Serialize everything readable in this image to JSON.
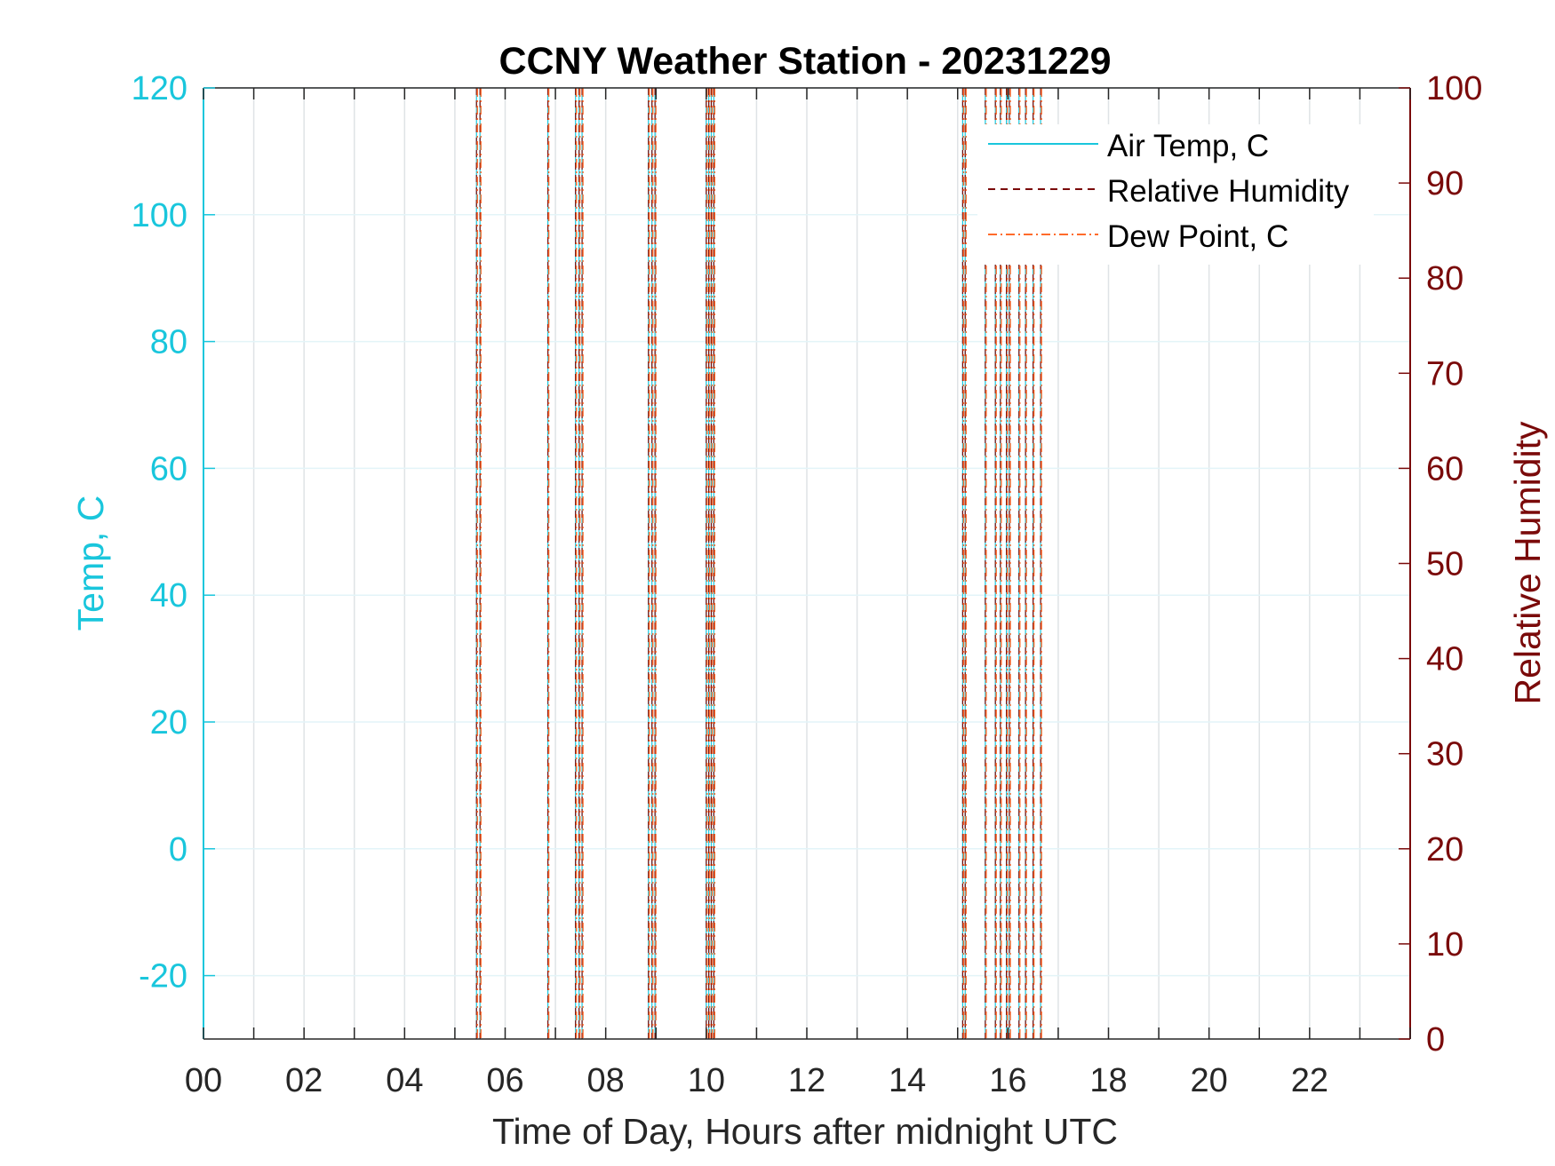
{
  "chart_data": {
    "type": "line",
    "title": "CCNY Weather Station - 20231229",
    "xlabel": "Time of Day, Hours after midnight UTC",
    "ylabel_left": "Temp, C",
    "ylabel_right": "Relative Humidity",
    "xlim": [
      0,
      24
    ],
    "ylim_left": [
      -30,
      120
    ],
    "ylim_right": [
      0,
      100
    ],
    "x_ticks": [
      "00",
      "02",
      "04",
      "06",
      "08",
      "10",
      "12",
      "14",
      "16",
      "18",
      "20",
      "22"
    ],
    "x_tick_values": [
      0,
      2,
      4,
      6,
      8,
      10,
      12,
      14,
      16,
      18,
      20,
      22
    ],
    "y_left_ticks": [
      -20,
      0,
      20,
      40,
      60,
      80,
      100,
      120
    ],
    "y_right_ticks": [
      0,
      10,
      20,
      30,
      40,
      50,
      60,
      70,
      80,
      90,
      100
    ],
    "grid": true,
    "legend_position": "top-right",
    "series": [
      {
        "name": "Air Temp, C",
        "axis": "left",
        "style": "solid",
        "color": "#19c6dc"
      },
      {
        "name": "Relative Humidity",
        "axis": "right",
        "style": "dashed",
        "color": "#7a0a0a"
      },
      {
        "name": "Dew Point, C",
        "axis": "left",
        "style": "dash-dot",
        "color": "#ff6b2b"
      }
    ],
    "gap_marker_times": [
      5.43,
      5.5,
      6.85,
      7.4,
      7.47,
      7.53,
      8.85,
      8.92,
      8.98,
      10.0,
      10.05,
      10.1,
      10.15,
      15.1,
      15.15,
      15.55,
      15.75,
      15.85,
      15.97,
      16.03,
      16.22,
      16.35,
      16.5,
      16.65
    ]
  },
  "colors": {
    "left_axis": "#19c6dc",
    "right_axis": "#7a0a0a",
    "dew_point": "#ff6b2b",
    "grid": "#dfe3e6"
  }
}
